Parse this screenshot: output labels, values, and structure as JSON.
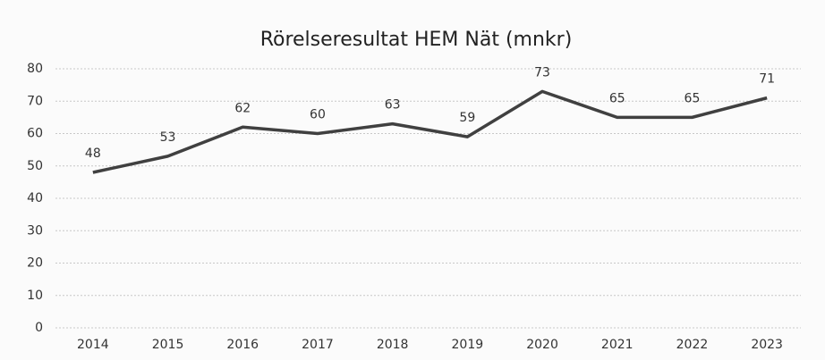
{
  "chart_data": {
    "type": "line",
    "title": "Rörelseresultat HEM Nät (mnkr)",
    "categories": [
      "2014",
      "2015",
      "2016",
      "2017",
      "2018",
      "2019",
      "2020",
      "2021",
      "2022",
      "2023"
    ],
    "values": [
      48,
      53,
      62,
      60,
      63,
      59,
      73,
      65,
      65,
      71
    ],
    "color": "#404040",
    "ylim": [
      0,
      80
    ],
    "yticks": [
      0,
      10,
      20,
      30,
      40,
      50,
      60,
      70,
      80
    ],
    "grid": true
  }
}
